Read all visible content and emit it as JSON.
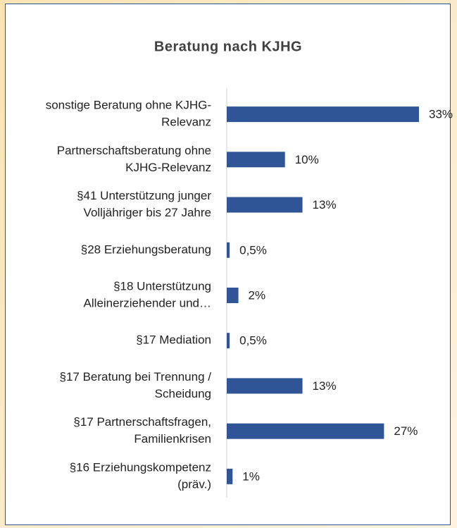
{
  "chart_data": {
    "type": "barh",
    "title": "Beratung nach KJHG",
    "categories": [
      [
        "sonstige Beratung ohne KJHG-",
        "Relevanz"
      ],
      [
        "Partnerschaftsberatung ohne",
        "KJHG-Relevanz"
      ],
      [
        "§41 Unterstützung junger",
        "Volljähriger bis 27 Jahre"
      ],
      [
        "§28 Erziehungsberatung"
      ],
      [
        "§18 Unterstützung",
        "Alleinerziehender und…"
      ],
      [
        "§17 Mediation"
      ],
      [
        "§17 Beratung bei Trennung /",
        "Scheidung"
      ],
      [
        "§17 Partnerschaftsfragen,",
        "Familienkrisen"
      ],
      [
        "§16 Erziehungskompetenz",
        "(präv.)"
      ]
    ],
    "values": [
      33,
      10,
      13,
      0.5,
      2,
      0.5,
      13,
      27,
      1
    ],
    "value_labels": [
      "33%",
      "10%",
      "13%",
      "0,5%",
      "2%",
      "0,5%",
      "13%",
      "27%",
      "1%"
    ],
    "color": "#2f5597",
    "xlim": [
      0,
      33
    ]
  }
}
